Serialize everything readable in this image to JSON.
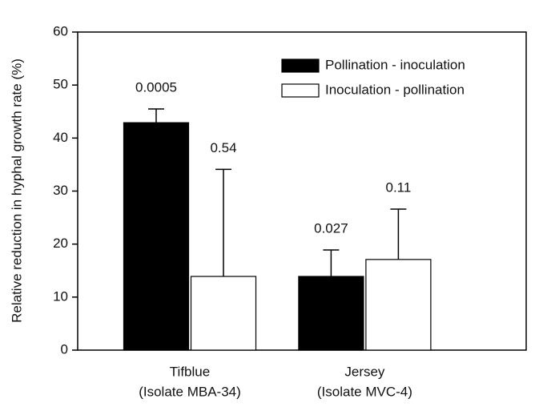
{
  "chart_data": {
    "type": "bar",
    "ylabel": "Relative reduction in hyphal growth rate (%)",
    "categories": [
      [
        "Tifblue",
        "(Isolate MBA-34)"
      ],
      [
        "Jersey",
        "(Isolate MVC-4)"
      ]
    ],
    "series": [
      {
        "name": "Pollination - inoculation",
        "color": "#000000",
        "values": [
          42.9,
          13.9
        ],
        "errors": [
          2.6,
          5.0
        ],
        "labels": [
          "0.0005",
          "0.027"
        ]
      },
      {
        "name": "Inoculation - pollination",
        "color": "#ffffff",
        "values": [
          13.9,
          17.1
        ],
        "errors": [
          20.2,
          9.5
        ],
        "labels": [
          "0.54",
          "0.11"
        ]
      }
    ],
    "ylim": [
      0,
      60
    ],
    "yticks": [
      0,
      10,
      20,
      30,
      40,
      50,
      60
    ],
    "legend": "upper right"
  }
}
